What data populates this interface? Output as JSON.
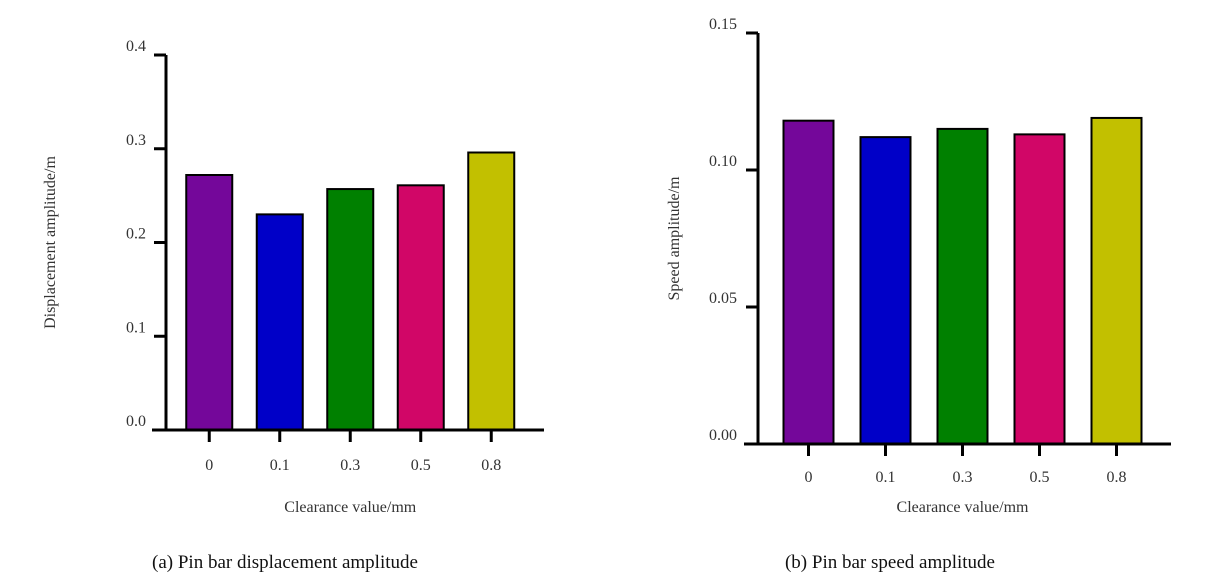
{
  "chart_data": [
    {
      "type": "bar",
      "categories": [
        "0",
        "0.1",
        "0.3",
        "0.5",
        "0.8"
      ],
      "values": [
        0.272,
        0.23,
        0.257,
        0.261,
        0.296
      ],
      "colors": [
        "#74079a",
        "#0000c8",
        "#008000",
        "#d10667",
        "#c2c000"
      ],
      "xlabel": "Clearance value/mm",
      "ylabel": "Displacement amplitude/m",
      "ylim": [
        0,
        0.4
      ],
      "yticks": [
        "0.0",
        "0.1",
        "0.2",
        "0.3",
        "0.4"
      ],
      "caption": "(a) Pin bar displacement amplitude",
      "grid": false
    },
    {
      "type": "bar",
      "categories": [
        "0",
        "0.1",
        "0.3",
        "0.5",
        "0.8"
      ],
      "values": [
        0.118,
        0.112,
        0.115,
        0.113,
        0.119
      ],
      "colors": [
        "#74079a",
        "#0000c8",
        "#008000",
        "#d10667",
        "#c2c000"
      ],
      "xlabel": "Clearance value/mm",
      "ylabel": "Speed amplitude/m",
      "ylim": [
        0,
        0.15
      ],
      "yticks": [
        "0.00",
        "0.05",
        "0.10",
        "0.15"
      ],
      "caption": "(b) Pin bar speed amplitude",
      "grid": false
    }
  ]
}
